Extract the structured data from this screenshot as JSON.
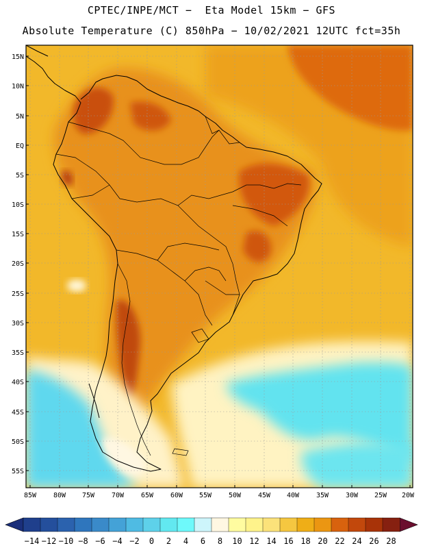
{
  "header": {
    "line1": "CPTEC/INPE/MCT −  Eta Model 15km − GFS",
    "line2": "Absolute Temperature (C) 850hPa − 10/02/2021 12UTC fct=35h"
  },
  "map": {
    "lat_labels": [
      "15N",
      "10N",
      "5N",
      "EQ",
      "5S",
      "10S",
      "15S",
      "20S",
      "25S",
      "30S",
      "35S",
      "40S",
      "45S",
      "50S",
      "55S"
    ],
    "lon_labels": [
      "85W",
      "80W",
      "75W",
      "70W",
      "65W",
      "60W",
      "55W",
      "50W",
      "45W",
      "40W",
      "35W",
      "30W",
      "25W",
      "20W"
    ]
  },
  "legend": {
    "labels": [
      "−14",
      "−12",
      "−10",
      "−8",
      "−6",
      "−4",
      "−2",
      "0",
      "2",
      "4",
      "6",
      "8",
      "10",
      "12",
      "14",
      "16",
      "18",
      "20",
      "22",
      "24",
      "26",
      "28"
    ],
    "colors": [
      "#1f3f8c",
      "#244f9c",
      "#2b62ae",
      "#2f76bd",
      "#3a8ac9",
      "#44a2d7",
      "#4fbbe3",
      "#5ed1ea",
      "#62e8f0",
      "#6ef9fb",
      "#cdf5fb",
      "#fff7e2",
      "#fffca0",
      "#fef38b",
      "#fbe27a",
      "#f5c740",
      "#efae17",
      "#eb9612",
      "#d8620e",
      "#c2480c",
      "#a83308",
      "#862010"
    ],
    "low_end_color": "#1a2e7a",
    "high_end_color": "#6b0e2e"
  }
}
